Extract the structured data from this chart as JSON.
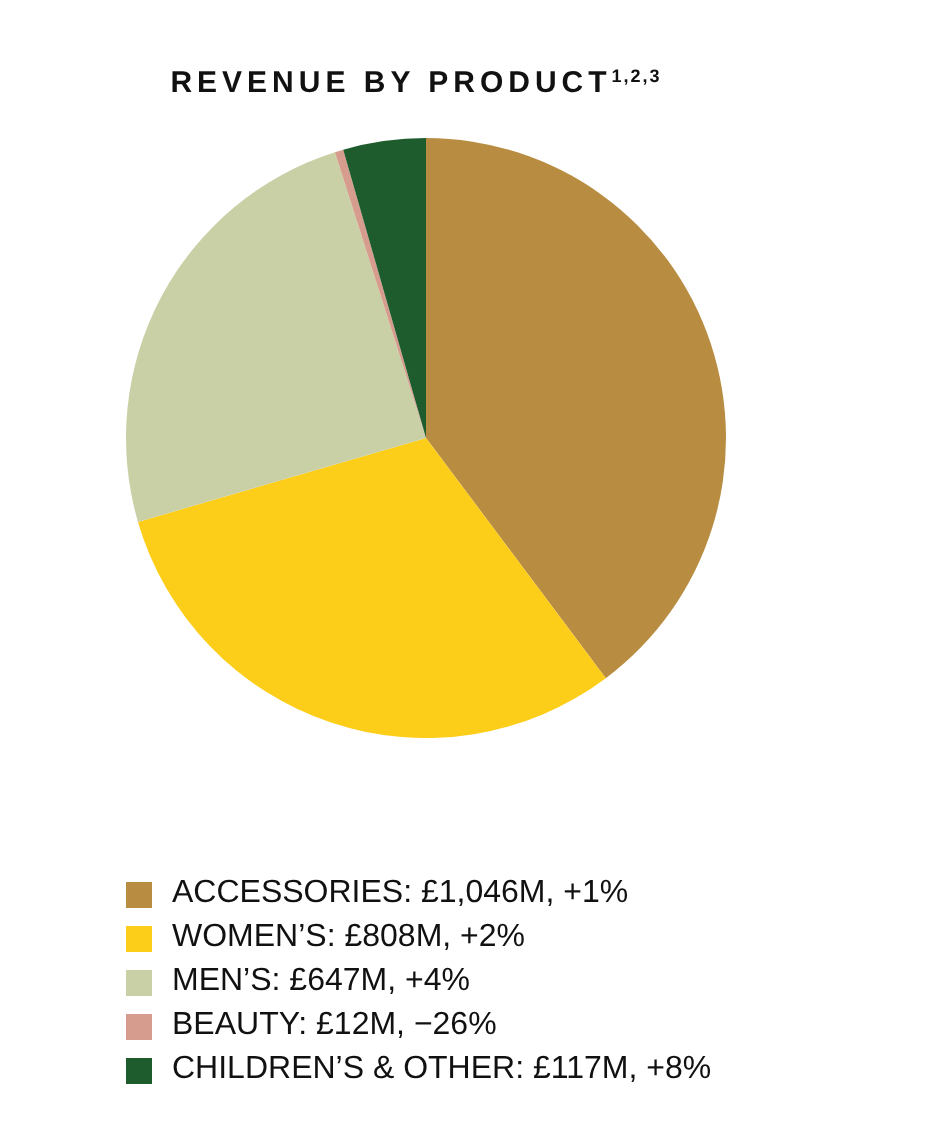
{
  "chart_data": {
    "type": "pie",
    "title": "REVENUE BY PRODUCT$^{1,2,3}$",
    "categories": [
      "ACCESSORIES: £1,046M, +1%",
      "WOMEN’S: £808M, +2%",
      "MEN’S: £647M, +4%",
      "BEAUTY: £12M, −26%",
      "CHILDREN’S & OTHER: £117M, +8%"
    ],
    "values": [
      39.77,
      30.72,
      24.6,
      0.46,
      4.45
    ],
    "colors": [
      "#b88d42",
      "#fccd19",
      "#c9d0a6",
      "#d69d8e",
      "#1e5c2e"
    ],
    "legend": "bottom"
  }
}
